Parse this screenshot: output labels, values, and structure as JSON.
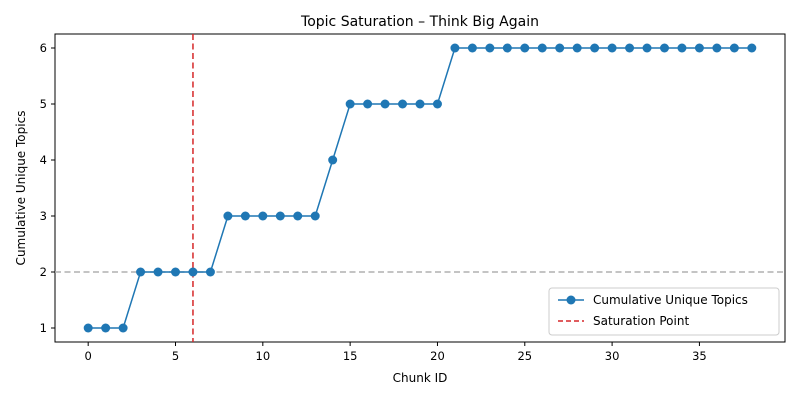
{
  "chart_data": {
    "type": "line",
    "title": "Topic Saturation – Think Big Again",
    "xlabel": "Chunk ID",
    "ylabel": "Cumulative Unique Topics",
    "xlim": [
      -1.9,
      39.9
    ],
    "ylim": [
      0.75,
      6.25
    ],
    "x_ticks": [
      0,
      5,
      10,
      15,
      20,
      25,
      30,
      35
    ],
    "y_ticks": [
      1,
      2,
      3,
      4,
      5,
      6
    ],
    "grid": false,
    "legend_position": "lower-right",
    "series": [
      {
        "name": "Cumulative Unique Topics",
        "color": "#1f77b4",
        "marker": "circle",
        "x": [
          0,
          1,
          2,
          3,
          4,
          5,
          6,
          7,
          8,
          9,
          10,
          11,
          12,
          13,
          14,
          15,
          16,
          17,
          18,
          19,
          20,
          21,
          22,
          23,
          24,
          25,
          26,
          27,
          28,
          29,
          30,
          31,
          32,
          33,
          34,
          35,
          36,
          37,
          38
        ],
        "values": [
          1,
          1,
          1,
          2,
          2,
          2,
          2,
          2,
          3,
          3,
          3,
          3,
          3,
          3,
          4,
          5,
          5,
          5,
          5,
          5,
          5,
          6,
          6,
          6,
          6,
          6,
          6,
          6,
          6,
          6,
          6,
          6,
          6,
          6,
          6,
          6,
          6,
          6,
          6
        ]
      }
    ],
    "reference_lines": [
      {
        "orientation": "vertical",
        "value": 6,
        "name": "Saturation Point",
        "color": "#d62728",
        "style": "dashed"
      },
      {
        "orientation": "horizontal",
        "value": 2,
        "color": "#b0b0b0",
        "style": "dashed"
      }
    ]
  }
}
